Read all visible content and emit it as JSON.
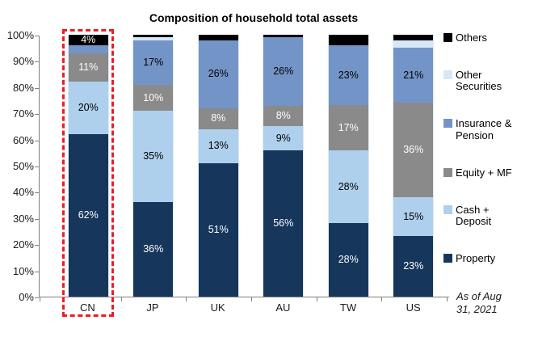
{
  "chart_data": {
    "type": "bar",
    "stacked": true,
    "title": "Composition of household total assets",
    "note": "As of Aug 31, 2021",
    "categories": [
      "CN",
      "JP",
      "UK",
      "AU",
      "TW",
      "US"
    ],
    "y_ticks": [
      "100%",
      "90%",
      "80%",
      "70%",
      "60%",
      "50%",
      "40%",
      "30%",
      "20%",
      "10%",
      "0%"
    ],
    "ylim": [
      0,
      100
    ],
    "grid": false,
    "legend_position": "right",
    "highlighted_category": "CN",
    "highlight_color": "#ED1C24",
    "axis_color": "#808080",
    "series": [
      {
        "name": "Property",
        "color": "#16365C",
        "label_color": "#FFFFFF",
        "values": [
          62,
          36,
          51,
          56,
          28,
          23
        ],
        "labels": [
          "62%",
          "36%",
          "51%",
          "56%",
          "28%",
          "23%"
        ]
      },
      {
        "name": "Cash + Deposit",
        "color": "#AED0EC",
        "label_color": "#000000",
        "values": [
          20,
          35,
          13,
          9,
          28,
          15
        ],
        "labels": [
          "20%",
          "35%",
          "13%",
          "9%",
          "28%",
          "15%"
        ]
      },
      {
        "name": "Equity + MF",
        "color": "#8A8A8A",
        "label_color": "#FFFFFF",
        "values": [
          11,
          10,
          8,
          8,
          17,
          36
        ],
        "labels": [
          "11%",
          "10%",
          "8%",
          "8%",
          "17%",
          "36%"
        ]
      },
      {
        "name": "Insurance & Pension",
        "color": "#7394C6",
        "label_color": "#000000",
        "values": [
          3,
          17,
          26,
          26,
          23,
          21
        ],
        "labels": [
          "",
          "17%",
          "26%",
          "26%",
          "23%",
          "21%"
        ]
      },
      {
        "name": "Other Securities",
        "color": "#D8E7F6",
        "label_color": "#000000",
        "values": [
          0,
          1,
          0,
          0,
          0,
          3
        ],
        "labels": [
          "",
          "",
          "",
          "",
          "",
          ""
        ]
      },
      {
        "name": "Others",
        "color": "#000000",
        "label_color": "#FFFFFF",
        "values": [
          4,
          1,
          2,
          1,
          4,
          2
        ],
        "labels": [
          "4%",
          "",
          "",
          "",
          "",
          ""
        ]
      }
    ]
  }
}
